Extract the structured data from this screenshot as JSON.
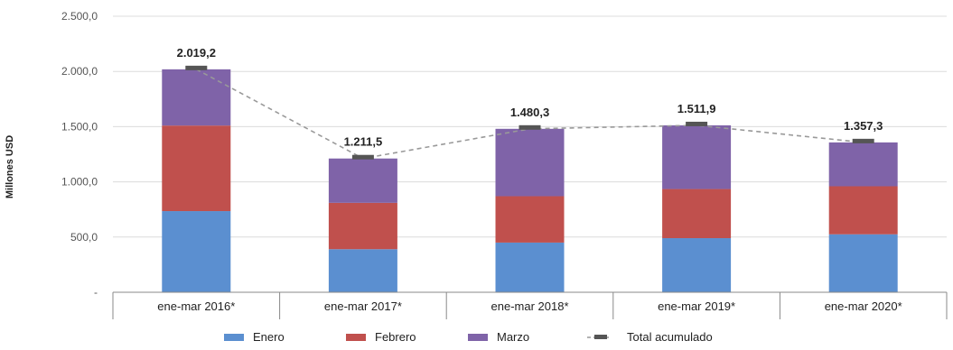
{
  "chart_data": {
    "type": "bar",
    "stacked": true,
    "title": "",
    "xlabel": "",
    "ylabel": "Millones USD",
    "ylim": [
      0,
      2500
    ],
    "y_ticks": [
      0,
      500,
      1000,
      1500,
      2000,
      2500
    ],
    "y_tick_labels": [
      "-",
      "500,0",
      "1.000,0",
      "1.500,0",
      "2.000,0",
      "2.500,0"
    ],
    "categories": [
      "ene-mar 2016*",
      "ene-mar 2017*",
      "ene-mar 2018*",
      "ene-mar 2019*",
      "ene-mar 2020*"
    ],
    "series": [
      {
        "name": "Enero",
        "color": "#5b8fd0",
        "values": [
          735,
          390,
          450,
          490,
          525
        ]
      },
      {
        "name": "Febrero",
        "color": "#c0504d",
        "values": [
          775,
          420,
          420,
          445,
          435
        ]
      },
      {
        "name": "Marzo",
        "color": "#7f63a8",
        "values": [
          509.2,
          401.5,
          610.3,
          576.9,
          397.3
        ]
      }
    ],
    "total": {
      "name": "Total acumulado",
      "values": [
        2019.2,
        1211.5,
        1480.3,
        1511.9,
        1357.3
      ],
      "labels": [
        "2.019,2",
        "1.211,5",
        "1.480,3",
        "1.511,9",
        "1.357,3"
      ],
      "color": "#999999",
      "marker_color": "#555555"
    },
    "legend_position": "bottom",
    "grid": true
  }
}
